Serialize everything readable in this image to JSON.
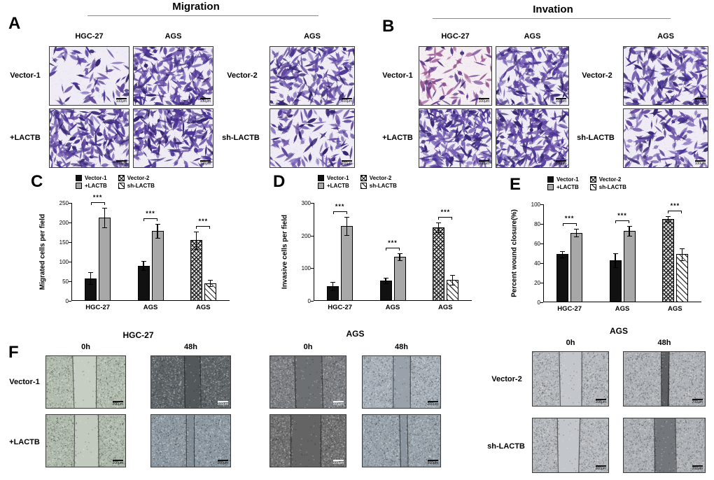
{
  "figure": {
    "migration_title": "Migration",
    "invasion_title": "Invation"
  },
  "panels": {
    "A": {
      "letter": "A",
      "assay": "Migration",
      "columns": [
        "HGC-27",
        "AGS",
        "AGS"
      ],
      "row_labels_left": [
        "Vector-1",
        "+LACTB"
      ],
      "row_labels_right": [
        "Vector-2",
        "sh-LACTB"
      ],
      "scale_label": "100μm"
    },
    "B": {
      "letter": "B",
      "assay": "Invation",
      "columns": [
        "HGC-27",
        "AGS",
        "AGS"
      ],
      "row_labels_left": [
        "Vector-1",
        "+LACTB"
      ],
      "row_labels_right": [
        "Vector-2",
        "sh-LACTB"
      ],
      "scale_label": "100μm"
    },
    "C": {
      "letter": "C"
    },
    "D": {
      "letter": "D"
    },
    "E": {
      "letter": "E"
    },
    "F": {
      "letter": "F",
      "cell_line_headers": [
        "HGC-27",
        "AGS",
        "AGS"
      ],
      "timepoints": [
        "0h",
        "48h"
      ],
      "row_labels_left": [
        "Vector-1",
        "+LACTB"
      ],
      "row_labels_right": [
        "Vector-2",
        "sh-LACTB"
      ],
      "scale_label": "200μm"
    }
  },
  "series_styles": {
    "Vector-1": {
      "fill": "#111111",
      "pattern": "solid"
    },
    "+LACTB": {
      "fill": "#a8a8a8",
      "pattern": "solid"
    },
    "Vector-2": {
      "fill": "#3a3a3a",
      "pattern": "crosshatch"
    },
    "sh-LACTB": {
      "fill": "#555555",
      "pattern": "diagonal-stripes"
    }
  },
  "chart_data": [
    {
      "id": "C",
      "type": "bar",
      "title": "",
      "xlabel": "",
      "ylabel": "Migrated cells per field",
      "ylim": [
        0,
        250
      ],
      "yticks": [
        0,
        50,
        100,
        150,
        200,
        250
      ],
      "legend": [
        "Vector-1",
        "Vector-2",
        "+LACTB",
        "sh-LACTB"
      ],
      "legend_position": "top",
      "grid": false,
      "categories": [
        "HGC-27",
        "AGS",
        "AGS"
      ],
      "groups": [
        {
          "category": "HGC-27",
          "significance": "***",
          "bars": [
            {
              "series": "Vector-1",
              "value": 58,
              "error": 15
            },
            {
              "series": "+LACTB",
              "value": 212,
              "error": 25
            }
          ]
        },
        {
          "category": "AGS",
          "significance": "***",
          "bars": [
            {
              "series": "Vector-1",
              "value": 90,
              "error": 12
            },
            {
              "series": "+LACTB",
              "value": 178,
              "error": 18
            }
          ]
        },
        {
          "category": "AGS",
          "significance": "***",
          "bars": [
            {
              "series": "Vector-2",
              "value": 155,
              "error": 22
            },
            {
              "series": "sh-LACTB",
              "value": 45,
              "error": 8
            }
          ]
        }
      ]
    },
    {
      "id": "D",
      "type": "bar",
      "title": "",
      "xlabel": "",
      "ylabel": "Invasive cells per field",
      "ylim": [
        0,
        300
      ],
      "yticks": [
        0,
        100,
        200,
        300
      ],
      "legend": [
        "Vector-1",
        "Vector-2",
        "+LACTB",
        "sh-LACTB"
      ],
      "legend_position": "top",
      "grid": false,
      "categories": [
        "HGC-27",
        "AGS",
        "AGS"
      ],
      "groups": [
        {
          "category": "HGC-27",
          "significance": "***",
          "bars": [
            {
              "series": "Vector-1",
              "value": 45,
              "error": 12
            },
            {
              "series": "+LACTB",
              "value": 230,
              "error": 28
            }
          ]
        },
        {
          "category": "AGS",
          "significance": "***",
          "bars": [
            {
              "series": "Vector-1",
              "value": 62,
              "error": 8
            },
            {
              "series": "+LACTB",
              "value": 135,
              "error": 10
            }
          ]
        },
        {
          "category": "AGS",
          "significance": "***",
          "bars": [
            {
              "series": "Vector-2",
              "value": 225,
              "error": 15
            },
            {
              "series": "sh-LACTB",
              "value": 65,
              "error": 15
            }
          ]
        }
      ]
    },
    {
      "id": "E",
      "type": "bar",
      "title": "",
      "xlabel": "",
      "ylabel": "Percent wound closure(%)",
      "ylim": [
        0,
        100
      ],
      "yticks": [
        0,
        20,
        40,
        60,
        80,
        100
      ],
      "legend": [
        "Vector-1",
        "Vector-2",
        "+LACTB",
        "sh-LACTB"
      ],
      "legend_position": "top",
      "grid": false,
      "categories": [
        "HGC-27",
        "AGS",
        "AGS"
      ],
      "groups": [
        {
          "category": "HGC-27",
          "significance": "***",
          "bars": [
            {
              "series": "Vector-1",
              "value": 49,
              "error": 3
            },
            {
              "series": "+LACTB",
              "value": 71,
              "error": 4
            }
          ]
        },
        {
          "category": "AGS",
          "significance": "***",
          "bars": [
            {
              "series": "Vector-1",
              "value": 43,
              "error": 7
            },
            {
              "series": "+LACTB",
              "value": 73,
              "error": 5
            }
          ]
        },
        {
          "category": "AGS",
          "significance": "***",
          "bars": [
            {
              "series": "Vector-2",
              "value": 85,
              "error": 3
            },
            {
              "series": "sh-LACTB",
              "value": 49,
              "error": 6
            }
          ]
        }
      ]
    }
  ],
  "micrographs": {
    "A": [
      {
        "condition": "Vector-1",
        "cell_line": "HGC-27",
        "cells": 70,
        "tint": "purple"
      },
      {
        "condition": "Vector-1",
        "cell_line": "AGS",
        "cells": 230,
        "tint": "purple"
      },
      {
        "condition": "Vector-2",
        "cell_line": "AGS",
        "cells": 200,
        "tint": "purple"
      },
      {
        "condition": "+LACTB",
        "cell_line": "HGC-27",
        "cells": 240,
        "tint": "purple"
      },
      {
        "condition": "+LACTB",
        "cell_line": "AGS",
        "cells": 220,
        "tint": "purple"
      },
      {
        "condition": "sh-LACTB",
        "cell_line": "AGS",
        "cells": 120,
        "tint": "purple"
      }
    ],
    "B": [
      {
        "condition": "Vector-1",
        "cell_line": "HGC-27",
        "cells": 90,
        "tint": "pink"
      },
      {
        "condition": "Vector-1",
        "cell_line": "AGS",
        "cells": 190,
        "tint": "purple"
      },
      {
        "condition": "Vector-2",
        "cell_line": "AGS",
        "cells": 210,
        "tint": "purple"
      },
      {
        "condition": "+LACTB",
        "cell_line": "HGC-27",
        "cells": 245,
        "tint": "purple"
      },
      {
        "condition": "+LACTB",
        "cell_line": "AGS",
        "cells": 235,
        "tint": "purple"
      },
      {
        "condition": "sh-LACTB",
        "cell_line": "AGS",
        "cells": 140,
        "tint": "purple"
      }
    ],
    "F": [
      {
        "condition": "Vector-1",
        "cell_line": "HGC-27",
        "time": "0h",
        "bg": "#b2bcae",
        "gap": 0.3,
        "gap_color": "#c6cdc2"
      },
      {
        "condition": "Vector-1",
        "cell_line": "HGC-27",
        "time": "48h",
        "bg": "#5f6568",
        "gap": 0.2,
        "gap_color": "#53585b"
      },
      {
        "condition": "+LACTB",
        "cell_line": "HGC-27",
        "time": "0h",
        "bg": "#aeb8ab",
        "gap": 0.3,
        "gap_color": "#c2c9bf"
      },
      {
        "condition": "+LACTB",
        "cell_line": "HGC-27",
        "time": "48h",
        "bg": "#8d98a1",
        "gap": 0.1,
        "gap_color": "#828d96"
      },
      {
        "condition": "Vector-1",
        "cell_line": "AGS",
        "time": "0h",
        "bg": "#7b7e82",
        "gap": 0.36,
        "gap_color": "#6d7073"
      },
      {
        "condition": "Vector-1",
        "cell_line": "AGS",
        "time": "48h",
        "bg": "#a7b0b9",
        "gap": 0.22,
        "gap_color": "#99a2ab"
      },
      {
        "condition": "+LACTB",
        "cell_line": "AGS",
        "time": "0h",
        "bg": "#717171",
        "gap": 0.4,
        "gap_color": "#646464"
      },
      {
        "condition": "+LACTB",
        "cell_line": "AGS",
        "time": "48h",
        "bg": "#98a2ab",
        "gap": 0.1,
        "gap_color": "#8c96a0"
      },
      {
        "condition": "Vector-2",
        "cell_line": "AGS",
        "time": "0h",
        "bg": "#b4b8bc",
        "gap": 0.3,
        "gap_color": "#c3c6ca"
      },
      {
        "condition": "Vector-2",
        "cell_line": "AGS",
        "time": "48h",
        "bg": "#aeb2b6",
        "gap": 0.1,
        "gap_color": "#5c5f62"
      },
      {
        "condition": "sh-LACTB",
        "cell_line": "AGS",
        "time": "0h",
        "bg": "#b4b8bc",
        "gap": 0.3,
        "gap_color": "#c3c6ca"
      },
      {
        "condition": "sh-LACTB",
        "cell_line": "AGS",
        "time": "48h",
        "bg": "#acb0b4",
        "gap": 0.26,
        "gap_color": "#73767a"
      }
    ]
  },
  "colors": {
    "bar_black": "#111111",
    "bar_gray": "#a8a8a8",
    "stain_purple": "#4b3496",
    "axis": "#000000"
  }
}
